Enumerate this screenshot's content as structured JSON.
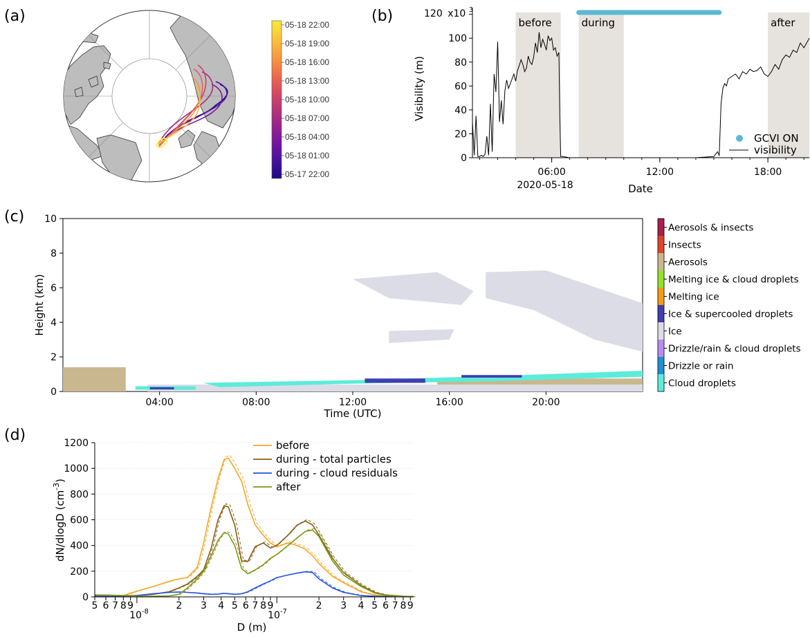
{
  "panels": {
    "a": "(a)",
    "b": "(b)",
    "c": "(c)",
    "d": "(d)"
  },
  "colors": {
    "shade": "#e6e2de",
    "gcvi": "#5bb9d3",
    "visibility": "#000000",
    "land": "#bdbdbd",
    "c_aer": "#c9b88f",
    "c_cloud": "#5cecd9",
    "c_ice": "#dcdce7",
    "c_icesc": "#3e3fb0",
    "d_before": "#f5a623",
    "d_total": "#8b5a14",
    "d_resid": "#2352e0",
    "d_after": "#7c9a12"
  },
  "chart_data": [
    {
      "id": "a",
      "type": "map",
      "colorbar": {
        "labels": [
          "05-18 22:00",
          "05-18 19:00",
          "05-18 16:00",
          "05-18 13:00",
          "05-18 10:00",
          "05-18 07:00",
          "05-18 04:00",
          "05-18 01:00",
          "05-17 22:00"
        ],
        "colors": [
          "#f7ea3a",
          "#fbbf3c",
          "#f79240",
          "#e9614f",
          "#c9406a",
          "#a42a86",
          "#7d179a",
          "#4d10a1",
          "#1b0a83"
        ]
      }
    },
    {
      "id": "b",
      "type": "line",
      "xlabel": "Date",
      "ylabel": "Visibility (m)",
      "x_ticks": [
        "06:00",
        "12:00",
        "18:00"
      ],
      "x_tick_hours": [
        6,
        12,
        18
      ],
      "x_date_label": "2020-05-18",
      "xlim_hours": [
        1.6,
        20.3
      ],
      "y_ticks": [
        0,
        20,
        40,
        60,
        80,
        100,
        120
      ],
      "ylim": [
        0,
        125
      ],
      "y_multiplier": "x10",
      "periods": [
        {
          "label": "before",
          "start_h": 4.0,
          "end_h": 6.5
        },
        {
          "label": "during",
          "start_h": 7.5,
          "end_h": 10.0
        },
        {
          "label": "after",
          "start_h": 18.0,
          "end_h": 20.3
        }
      ],
      "gcvi_on": {
        "start_h": 7.5,
        "end_h": 15.3
      },
      "legend": [
        "GCVI ON",
        "visibility"
      ],
      "series": [
        {
          "name": "visibility",
          "x_hours": [
            1.6,
            1.7,
            1.8,
            1.9,
            2.0,
            2.1,
            2.2,
            2.3,
            2.4,
            2.5,
            2.6,
            2.7,
            2.8,
            2.9,
            3.0,
            3.1,
            3.2,
            3.3,
            3.4,
            3.5,
            3.6,
            3.7,
            3.8,
            3.9,
            4.0,
            4.1,
            4.2,
            4.3,
            4.4,
            4.5,
            4.6,
            4.7,
            4.8,
            4.9,
            5.0,
            5.1,
            5.2,
            5.3,
            5.4,
            5.5,
            5.6,
            5.7,
            5.8,
            5.9,
            6.0,
            6.1,
            6.2,
            6.3,
            6.4,
            6.45,
            6.5,
            6.6,
            7.0,
            8.0,
            9.0,
            10.0,
            11.0,
            12.0,
            13.0,
            14.0,
            15.0,
            15.1,
            15.2,
            15.3,
            15.4,
            15.5,
            15.6,
            15.7,
            15.8,
            16.0,
            16.2,
            16.4,
            16.6,
            16.8,
            17.0,
            17.2,
            17.4,
            17.6,
            17.8,
            18.0,
            18.2,
            18.4,
            18.6,
            18.8,
            19.0,
            19.2,
            19.4,
            19.6,
            19.8,
            20.0,
            20.3
          ],
          "values": [
            30,
            2,
            35,
            1,
            1,
            2,
            1,
            3,
            18,
            2,
            45,
            5,
            70,
            55,
            97,
            30,
            48,
            28,
            56,
            65,
            58,
            62,
            66,
            70,
            64,
            73,
            77,
            82,
            78,
            72,
            75,
            85,
            80,
            78,
            84,
            96,
            88,
            105,
            92,
            99,
            95,
            90,
            102,
            98,
            100,
            90,
            92,
            85,
            88,
            35,
            1,
            1,
            0,
            0,
            0,
            0,
            0,
            0,
            0,
            0,
            1,
            3,
            5,
            2,
            45,
            58,
            62,
            60,
            66,
            68,
            70,
            66,
            72,
            70,
            74,
            72,
            73,
            76,
            70,
            68,
            72,
            78,
            74,
            82,
            86,
            84,
            90,
            88,
            96,
            92,
            100
          ]
        }
      ]
    },
    {
      "id": "c",
      "type": "heatmap",
      "xlabel": "Time (UTC)",
      "ylabel": "Height (km)",
      "x_ticks": [
        "04:00",
        "08:00",
        "12:00",
        "16:00",
        "20:00"
      ],
      "x_tick_hours": [
        4,
        8,
        12,
        16,
        20
      ],
      "xlim_hours": [
        0,
        24
      ],
      "y_ticks": [
        0,
        2,
        4,
        6,
        8,
        10
      ],
      "ylim": [
        0,
        10
      ],
      "classes": [
        {
          "label": "Aerosols & insects",
          "color": "#a8204f"
        },
        {
          "label": "Insects",
          "color": "#e0452a"
        },
        {
          "label": "Aerosols",
          "color": "#c9b88f"
        },
        {
          "label": "Melting ice & cloud droplets",
          "color": "#92e22a"
        },
        {
          "label": "Melting ice",
          "color": "#f59b16"
        },
        {
          "label": "Ice & supercooled droplets",
          "color": "#3e3fb0"
        },
        {
          "label": "Ice",
          "color": "#dcdce7"
        },
        {
          "label": "Drizzle/rain & cloud droplets",
          "color": "#b78cf0"
        },
        {
          "label": "Drizzle or rain",
          "color": "#1f8fd6"
        },
        {
          "label": "Cloud droplets",
          "color": "#5cecd9"
        }
      ]
    },
    {
      "id": "d",
      "type": "line",
      "xlabel": "D (m)",
      "ylabel": "dN/dlogD (cm-3)",
      "xscale": "log",
      "xlim": [
        5e-09,
        9.5e-07
      ],
      "x_major_ticks": [
        "10",
        "10"
      ],
      "x_major_exponents": [
        "-8",
        "-7"
      ],
      "x_major_values": [
        1e-08,
        1e-07
      ],
      "y_ticks": [
        0,
        200,
        400,
        600,
        800,
        1000,
        1200
      ],
      "ylim": [
        0,
        1200
      ],
      "legend": [
        "before",
        "during - total particles",
        "during - cloud residuals",
        "after"
      ],
      "series": [
        {
          "name": "before",
          "x": [
            5e-09,
            7e-09,
            8e-09,
            1e-08,
            1.3e-08,
            1.7e-08,
            2e-08,
            2.3e-08,
            2.7e-08,
            3e-08,
            3.4e-08,
            3.8e-08,
            4.2e-08,
            4.5e-08,
            5e-08,
            5.6e-08,
            6.2e-08,
            7e-08,
            8e-08,
            9e-08,
            1e-07,
            1.2e-07,
            1.4e-07,
            1.6e-07,
            1.8e-07,
            2e-07,
            2.5e-07,
            3e-07,
            4e-07,
            5e-07,
            6e-07,
            8e-07,
            9.5e-07
          ],
          "values": [
            10,
            10,
            10,
            45,
            80,
            120,
            140,
            150,
            230,
            420,
            700,
            920,
            1070,
            1080,
            1000,
            900,
            720,
            560,
            480,
            420,
            390,
            420,
            400,
            370,
            320,
            260,
            160,
            110,
            40,
            15,
            5,
            2,
            2
          ]
        },
        {
          "name": "during - total particles",
          "x": [
            5e-09,
            7e-09,
            8e-09,
            1e-08,
            1.3e-08,
            1.7e-08,
            2e-08,
            2.3e-08,
            2.7e-08,
            3e-08,
            3.4e-08,
            3.8e-08,
            4.2e-08,
            4.5e-08,
            5e-08,
            5.6e-08,
            6.2e-08,
            7e-08,
            8e-08,
            9e-08,
            1e-07,
            1.2e-07,
            1.4e-07,
            1.6e-07,
            1.8e-07,
            2e-07,
            2.5e-07,
            3e-07,
            4e-07,
            5e-07,
            6e-07,
            8e-07,
            9.5e-07
          ],
          "values": [
            15,
            12,
            10,
            10,
            20,
            40,
            70,
            100,
            160,
            210,
            380,
            600,
            710,
            700,
            560,
            280,
            275,
            390,
            420,
            380,
            400,
            480,
            560,
            590,
            560,
            480,
            300,
            190,
            90,
            35,
            15,
            5,
            2
          ]
        },
        {
          "name": "during - cloud residuals",
          "x": [
            5e-09,
            7e-09,
            8e-09,
            1e-08,
            1.3e-08,
            1.7e-08,
            2e-08,
            2.3e-08,
            2.7e-08,
            3e-08,
            3.4e-08,
            3.8e-08,
            4.2e-08,
            4.5e-08,
            5e-08,
            5.6e-08,
            6.2e-08,
            7e-08,
            8e-08,
            9e-08,
            1e-07,
            1.2e-07,
            1.4e-07,
            1.6e-07,
            1.8e-07,
            2e-07,
            2.5e-07,
            3e-07,
            4e-07,
            5e-07,
            6e-07,
            8e-07,
            9.5e-07
          ],
          "values": [
            5,
            3,
            2,
            10,
            25,
            35,
            38,
            35,
            30,
            25,
            20,
            22,
            28,
            25,
            20,
            25,
            40,
            70,
            100,
            125,
            150,
            170,
            185,
            195,
            190,
            140,
            70,
            35,
            10,
            5,
            3,
            2,
            2
          ]
        },
        {
          "name": "after",
          "x": [
            5e-09,
            7e-09,
            8e-09,
            1e-08,
            1.3e-08,
            1.7e-08,
            2e-08,
            2.3e-08,
            2.7e-08,
            3e-08,
            3.4e-08,
            3.8e-08,
            4.2e-08,
            4.5e-08,
            5e-08,
            5.6e-08,
            6.2e-08,
            7e-08,
            8e-08,
            9e-08,
            1e-07,
            1.2e-07,
            1.4e-07,
            1.6e-07,
            1.8e-07,
            2e-07,
            2.5e-07,
            3e-07,
            4e-07,
            5e-07,
            6e-07,
            8e-07,
            9.5e-07
          ],
          "values": [
            15,
            12,
            10,
            5,
            5,
            8,
            20,
            70,
            140,
            200,
            320,
            440,
            500,
            490,
            400,
            220,
            180,
            210,
            250,
            300,
            330,
            400,
            460,
            510,
            520,
            470,
            280,
            170,
            80,
            30,
            12,
            4,
            2
          ]
        }
      ]
    }
  ]
}
